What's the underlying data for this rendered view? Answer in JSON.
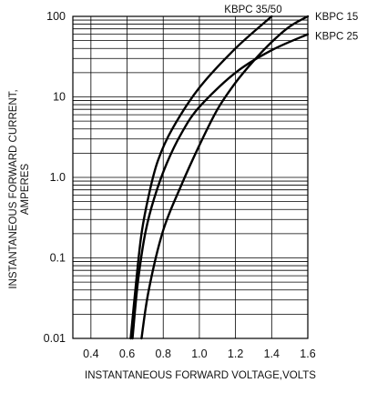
{
  "chart_data": {
    "type": "line",
    "title": "",
    "xlabel": "INSTANTANEOUS FORWARD VOLTAGE,VOLTS",
    "ylabel_line1": "INSTANTANEOUS FORWARD CURRENT,",
    "ylabel_line2": "AMPERES",
    "xlim": [
      0.3,
      1.6
    ],
    "ylim": [
      0.01,
      100
    ],
    "yscale": "log",
    "grid": true,
    "x_ticks": [
      "0.4",
      "0.6",
      "0.8",
      "1.0",
      "1.2",
      "1.4",
      "1.6"
    ],
    "y_ticks": [
      "0.01",
      "0.1",
      "1.0",
      "10",
      "100"
    ],
    "series": [
      {
        "name": "KBPC 35/50",
        "x": [
          0.62,
          0.65,
          0.68,
          0.72,
          0.77,
          0.85,
          1.0,
          1.2,
          1.4
        ],
        "y": [
          0.01,
          0.05,
          0.2,
          0.6,
          1.6,
          4.0,
          13,
          40,
          100
        ]
      },
      {
        "name": "KBPC 15",
        "x": [
          0.68,
          0.72,
          0.8,
          0.9,
          1.0,
          1.1,
          1.2,
          1.3,
          1.4,
          1.5,
          1.6
        ],
        "y": [
          0.01,
          0.04,
          0.22,
          0.8,
          2.5,
          7,
          15,
          28,
          48,
          75,
          100
        ]
      },
      {
        "name": "KBPC 25",
        "x": [
          0.63,
          0.66,
          0.7,
          0.75,
          0.82,
          0.9,
          1.0,
          1.2,
          1.4,
          1.6
        ],
        "y": [
          0.01,
          0.05,
          0.2,
          0.55,
          1.5,
          3.5,
          7.5,
          20,
          38,
          60
        ]
      }
    ]
  }
}
